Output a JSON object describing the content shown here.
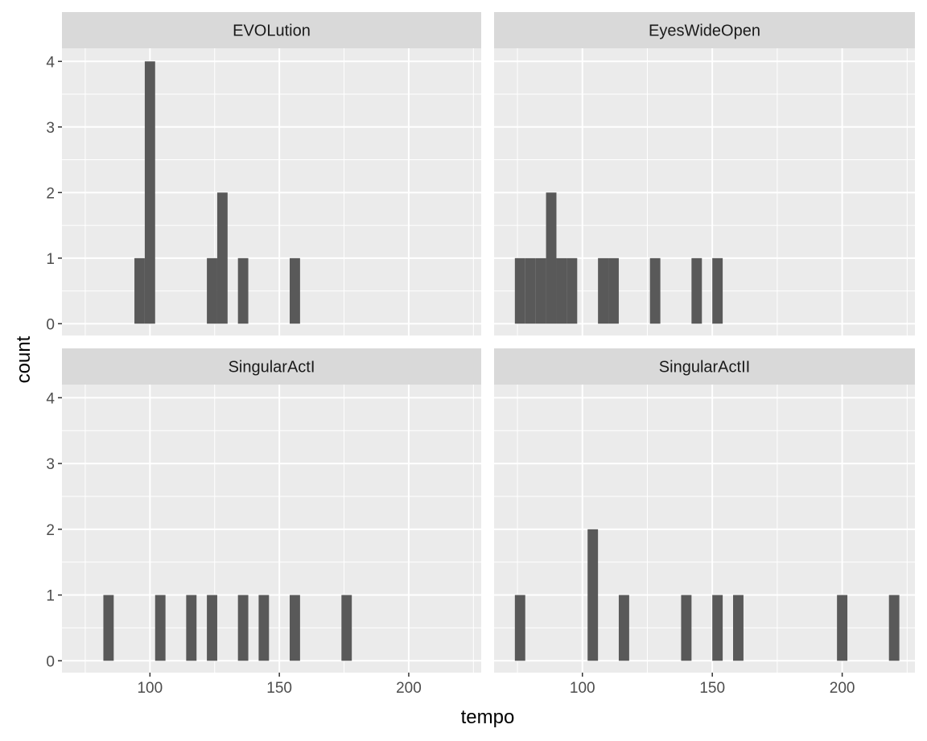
{
  "chart_data": {
    "type": "bar",
    "chart_kind": "faceted-histogram",
    "xlabel": "tempo",
    "ylabel": "count",
    "xlim": [
      66,
      228
    ],
    "ylim": [
      -0.18,
      4.2
    ],
    "x_ticks": [
      100,
      150,
      200
    ],
    "y_ticks": [
      0,
      1,
      2,
      3,
      4
    ],
    "bin_width": 4,
    "grid": true,
    "colors": {
      "bar": "#595959",
      "panel_bg": "#ebebeb",
      "strip_bg": "#d9d9d9",
      "grid": "#ffffff"
    },
    "facets": [
      {
        "name": "EVOLution",
        "bins": [
          {
            "x": 96,
            "count": 1
          },
          {
            "x": 100,
            "count": 4
          },
          {
            "x": 124,
            "count": 1
          },
          {
            "x": 128,
            "count": 2
          },
          {
            "x": 136,
            "count": 1
          },
          {
            "x": 156,
            "count": 1
          }
        ]
      },
      {
        "name": "EyesWideOpen",
        "bins": [
          {
            "x": 76,
            "count": 1
          },
          {
            "x": 80,
            "count": 1
          },
          {
            "x": 84,
            "count": 1
          },
          {
            "x": 88,
            "count": 2
          },
          {
            "x": 92,
            "count": 1
          },
          {
            "x": 96,
            "count": 1
          },
          {
            "x": 108,
            "count": 1
          },
          {
            "x": 112,
            "count": 1
          },
          {
            "x": 128,
            "count": 1
          },
          {
            "x": 144,
            "count": 1
          },
          {
            "x": 152,
            "count": 1
          }
        ]
      },
      {
        "name": "SingularActI",
        "bins": [
          {
            "x": 84,
            "count": 1
          },
          {
            "x": 104,
            "count": 1
          },
          {
            "x": 116,
            "count": 1
          },
          {
            "x": 124,
            "count": 1
          },
          {
            "x": 136,
            "count": 1
          },
          {
            "x": 144,
            "count": 1
          },
          {
            "x": 156,
            "count": 1
          },
          {
            "x": 176,
            "count": 1
          }
        ]
      },
      {
        "name": "SingularActII",
        "bins": [
          {
            "x": 76,
            "count": 1
          },
          {
            "x": 104,
            "count": 2
          },
          {
            "x": 116,
            "count": 1
          },
          {
            "x": 140,
            "count": 1
          },
          {
            "x": 152,
            "count": 1
          },
          {
            "x": 160,
            "count": 1
          },
          {
            "x": 200,
            "count": 1
          },
          {
            "x": 220,
            "count": 1
          }
        ]
      }
    ]
  }
}
